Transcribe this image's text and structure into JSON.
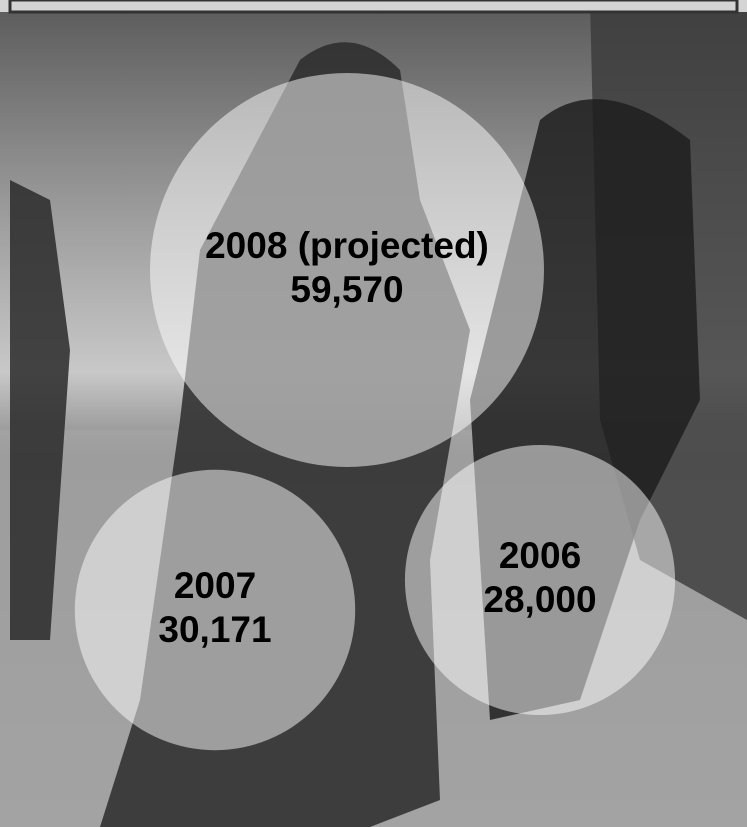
{
  "chart_data": {
    "type": "bubble",
    "categories": [
      "2008 (projected)",
      "2007",
      "2006"
    ],
    "values": [
      59570,
      30171,
      28000
    ],
    "value_labels": [
      "59,570",
      "30,171",
      "28,000"
    ],
    "color": "#ffffff"
  }
}
